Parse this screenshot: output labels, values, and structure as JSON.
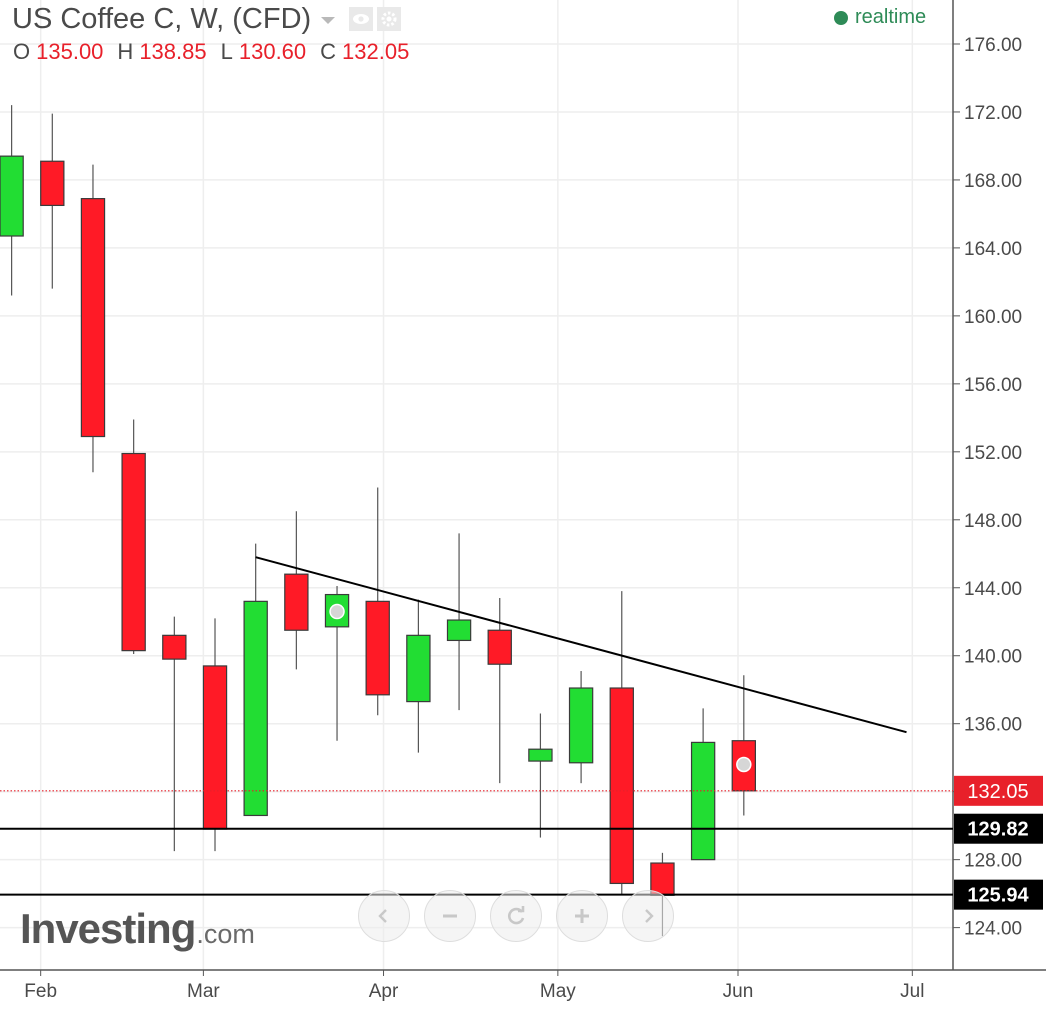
{
  "header": {
    "title": "US Coffee C, W, (CFD)",
    "ohlc": [
      {
        "key": "O",
        "value": "135.00"
      },
      {
        "key": "H",
        "value": "138.85"
      },
      {
        "key": "L",
        "value": "130.60"
      },
      {
        "key": "C",
        "value": "132.05"
      }
    ],
    "status": "realtime",
    "status_color": "#2e8b57"
  },
  "logo": {
    "main": "Investing",
    "suffix": ".com"
  },
  "nav": {
    "buttons": [
      "scroll-left",
      "zoom-out",
      "reset",
      "zoom-in",
      "scroll-right"
    ]
  },
  "colors": {
    "up": "#22dd33",
    "down": "#ff1a26",
    "price_line": "#e8202a",
    "level_line": "#000000",
    "grid": "#eeeeee"
  },
  "chart_data": {
    "type": "candlestick",
    "title": "US Coffee C, W, (CFD)",
    "interval": "weekly",
    "y_range": [
      121.8,
      178.0
    ],
    "y_ticks": [
      "176.00",
      "172.00",
      "168.00",
      "164.00",
      "160.00",
      "156.00",
      "152.00",
      "148.00",
      "144.00",
      "140.00",
      "136.00",
      "132.00",
      "128.00",
      "124.00"
    ],
    "x_labels": [
      "Feb",
      "Mar",
      "Apr",
      "May",
      "Jun",
      "Jul"
    ],
    "grid": true,
    "candles": [
      {
        "date": "2018-01-27",
        "open": 164.7,
        "high": 172.4,
        "low": 161.2,
        "close": 169.4
      },
      {
        "date": "2018-02-03",
        "open": 169.1,
        "high": 171.9,
        "low": 161.6,
        "close": 166.5
      },
      {
        "date": "2018-02-10",
        "open": 166.9,
        "high": 168.9,
        "low": 150.8,
        "close": 152.9
      },
      {
        "date": "2018-02-17",
        "open": 151.9,
        "high": 153.9,
        "low": 140.1,
        "close": 140.3
      },
      {
        "date": "2018-02-24",
        "open": 141.2,
        "high": 142.3,
        "low": 128.5,
        "close": 139.8
      },
      {
        "date": "2018-03-03",
        "open": 139.4,
        "high": 142.2,
        "low": 128.5,
        "close": 129.8
      },
      {
        "date": "2018-03-10",
        "open": 130.6,
        "high": 146.6,
        "low": 130.6,
        "close": 143.2
      },
      {
        "date": "2018-03-17",
        "open": 144.8,
        "high": 148.5,
        "low": 139.2,
        "close": 141.5
      },
      {
        "date": "2018-03-24",
        "open": 141.7,
        "high": 144.1,
        "low": 135.0,
        "close": 143.6
      },
      {
        "date": "2018-03-31",
        "open": 143.2,
        "high": 149.9,
        "low": 136.5,
        "close": 137.7
      },
      {
        "date": "2018-04-07",
        "open": 137.3,
        "high": 143.3,
        "low": 134.3,
        "close": 141.2
      },
      {
        "date": "2018-04-14",
        "open": 140.9,
        "high": 147.2,
        "low": 136.8,
        "close": 142.1
      },
      {
        "date": "2018-04-21",
        "open": 141.5,
        "high": 143.4,
        "low": 132.5,
        "close": 139.5
      },
      {
        "date": "2018-04-28",
        "open": 133.8,
        "high": 136.6,
        "low": 129.3,
        "close": 134.5
      },
      {
        "date": "2018-05-05",
        "open": 133.7,
        "high": 139.1,
        "low": 132.5,
        "close": 138.1
      },
      {
        "date": "2018-05-12",
        "open": 138.1,
        "high": 143.8,
        "low": 125.9,
        "close": 126.6
      },
      {
        "date": "2018-05-19",
        "open": 127.8,
        "high": 128.4,
        "low": 123.5,
        "close": 125.9
      },
      {
        "date": "2018-05-26",
        "open": 128.0,
        "high": 136.9,
        "low": 128.0,
        "close": 134.9
      },
      {
        "date": "2018-06-02",
        "open": 135.0,
        "high": 138.85,
        "low": 130.6,
        "close": 132.05
      }
    ],
    "markers": [
      {
        "date": "2018-03-24",
        "price": 142.6
      },
      {
        "date": "2018-06-02",
        "price": 133.6
      }
    ],
    "trendline": {
      "start": {
        "date": "2018-03-10",
        "price": 145.8
      },
      "end": {
        "date": "2018-06-30",
        "price": 135.5
      }
    },
    "horizontal_levels": [
      "129.82",
      "125.94"
    ],
    "last_price": "132.05",
    "x_domain": [
      "2018-01-25",
      "2018-07-08"
    ]
  }
}
